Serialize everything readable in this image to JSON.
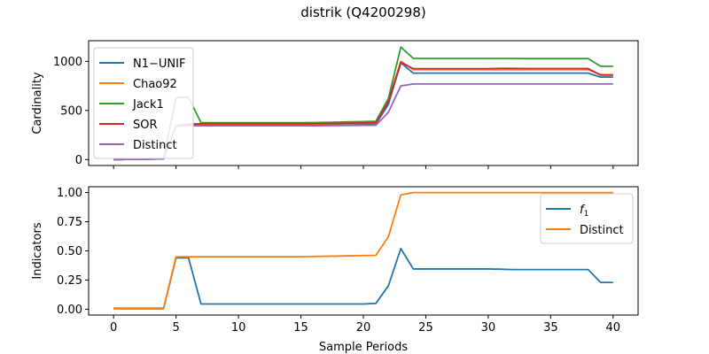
{
  "figure": {
    "title": "distrik (Q4200298)"
  },
  "chart_data": [
    {
      "type": "line",
      "ylabel": "Cardinality",
      "xlabel": "",
      "xlim": [
        -2,
        42
      ],
      "ylim": [
        -60,
        1210
      ],
      "xticks": [
        0,
        5,
        10,
        15,
        20,
        25,
        30,
        35,
        40
      ],
      "yticks": [
        0,
        500,
        1000
      ],
      "ytick_labels": [
        "0",
        "500",
        "1000"
      ],
      "legend_position": "upper-left",
      "grid": false,
      "x": [
        0,
        1,
        2,
        3,
        4,
        5,
        6,
        7,
        8,
        9,
        10,
        11,
        12,
        13,
        14,
        15,
        16,
        17,
        18,
        19,
        20,
        21,
        22,
        23,
        24,
        25,
        26,
        27,
        28,
        29,
        30,
        31,
        32,
        33,
        34,
        35,
        36,
        37,
        38,
        39,
        40
      ],
      "series": [
        {
          "name": "N1−UNIF",
          "color": "#1f77b4",
          "values": [
            0,
            2,
            4,
            6,
            8,
            345,
            355,
            355,
            355,
            355,
            355,
            355,
            355,
            355,
            355,
            355,
            356,
            357,
            358,
            359,
            360,
            362,
            560,
            985,
            880,
            880,
            880,
            880,
            880,
            880,
            880,
            880,
            880,
            880,
            880,
            880,
            880,
            880,
            880,
            840,
            840
          ]
        },
        {
          "name": "Chao92",
          "color": "#ff7f0e",
          "values": [
            0,
            2,
            4,
            6,
            8,
            350,
            360,
            362,
            362,
            362,
            362,
            362,
            362,
            362,
            362,
            362,
            363,
            364,
            366,
            368,
            370,
            372,
            600,
            1000,
            915,
            915,
            915,
            915,
            915,
            915,
            915,
            915,
            915,
            915,
            915,
            915,
            915,
            915,
            915,
            865,
            865
          ]
        },
        {
          "name": "Jack1",
          "color": "#2ca02c",
          "values": [
            0,
            2,
            4,
            6,
            8,
            630,
            635,
            375,
            375,
            375,
            375,
            375,
            375,
            375,
            375,
            375,
            377,
            379,
            381,
            384,
            387,
            390,
            620,
            1145,
            1030,
            1030,
            1030,
            1030,
            1030,
            1030,
            1030,
            1030,
            1030,
            1028,
            1028,
            1028,
            1028,
            1028,
            1028,
            950,
            950
          ]
        },
        {
          "name": "SOR",
          "color": "#d62728",
          "values": [
            0,
            2,
            4,
            6,
            8,
            340,
            360,
            365,
            365,
            365,
            365,
            365,
            365,
            365,
            365,
            365,
            366,
            367,
            369,
            371,
            373,
            375,
            590,
            990,
            925,
            925,
            925,
            925,
            925,
            925,
            925,
            928,
            928,
            926,
            926,
            926,
            926,
            926,
            926,
            860,
            860
          ]
        },
        {
          "name": "Distinct",
          "color": "#9467bd",
          "values": [
            0,
            2,
            4,
            6,
            8,
            340,
            345,
            345,
            345,
            345,
            345,
            345,
            345,
            345,
            345,
            345,
            345,
            346,
            347,
            348,
            349,
            350,
            480,
            750,
            770,
            770,
            770,
            770,
            770,
            770,
            770,
            770,
            770,
            770,
            770,
            770,
            770,
            770,
            770,
            770,
            770
          ]
        }
      ]
    },
    {
      "type": "line",
      "ylabel": "Indicators",
      "xlabel": "Sample Periods",
      "xlim": [
        -2,
        42
      ],
      "ylim": [
        -0.05,
        1.05
      ],
      "xticks": [
        0,
        5,
        10,
        15,
        20,
        25,
        30,
        35,
        40
      ],
      "xtick_labels": [
        "0",
        "5",
        "10",
        "15",
        "20",
        "25",
        "30",
        "35",
        "40"
      ],
      "yticks": [
        0.0,
        0.25,
        0.5,
        0.75,
        1.0
      ],
      "ytick_labels": [
        "0.00",
        "0.25",
        "0.50",
        "0.75",
        "1.00"
      ],
      "legend_position": "upper-right",
      "grid": false,
      "x": [
        0,
        1,
        2,
        3,
        4,
        5,
        6,
        7,
        8,
        9,
        10,
        11,
        12,
        13,
        14,
        15,
        16,
        17,
        18,
        19,
        20,
        21,
        22,
        23,
        24,
        25,
        26,
        27,
        28,
        29,
        30,
        31,
        32,
        33,
        34,
        35,
        36,
        37,
        38,
        39,
        40
      ],
      "series": [
        {
          "name": "f1",
          "name_base": "f",
          "name_sub": "1",
          "color": "#1f77b4",
          "values": [
            0.005,
            0.005,
            0.005,
            0.005,
            0.005,
            0.44,
            0.44,
            0.045,
            0.045,
            0.045,
            0.045,
            0.045,
            0.045,
            0.045,
            0.045,
            0.045,
            0.045,
            0.045,
            0.045,
            0.045,
            0.045,
            0.05,
            0.2,
            0.52,
            0.345,
            0.345,
            0.345,
            0.345,
            0.345,
            0.345,
            0.345,
            0.343,
            0.34,
            0.34,
            0.34,
            0.34,
            0.34,
            0.34,
            0.34,
            0.23,
            0.23
          ]
        },
        {
          "name": "Distinct",
          "color": "#ff7f0e",
          "values": [
            0.01,
            0.01,
            0.01,
            0.01,
            0.01,
            0.45,
            0.45,
            0.45,
            0.45,
            0.45,
            0.45,
            0.45,
            0.45,
            0.45,
            0.45,
            0.45,
            0.452,
            0.454,
            0.456,
            0.458,
            0.46,
            0.462,
            0.62,
            0.98,
            1.0,
            1.0,
            1.0,
            1.0,
            1.0,
            1.0,
            1.0,
            1.0,
            1.0,
            1.0,
            1.0,
            1.0,
            1.0,
            1.0,
            1.0,
            1.0,
            1.0
          ]
        }
      ]
    }
  ]
}
